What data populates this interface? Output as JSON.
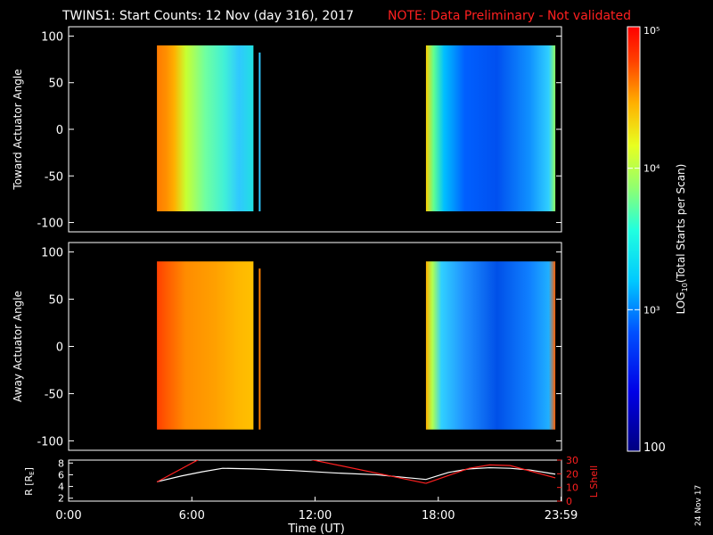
{
  "header": {
    "title": "TWINS1: Start Counts: 12 Nov (day 316), 2017",
    "note": "NOTE: Data Preliminary - Not validated"
  },
  "colorbar": {
    "label": "LOG10(Total Starts per Scan)",
    "label_base": "LOG",
    "label_sub": "10",
    "label_rest": "(Total Starts per Scan)",
    "ticks": [
      "10⁵",
      "10⁴",
      "10³",
      "100"
    ],
    "min": 100,
    "max": 100000,
    "scale": "log"
  },
  "date_stamp": "24 Nov 17",
  "chart_data": [
    {
      "type": "heatmap",
      "name": "toward",
      "ylabel": "Toward Actuator Angle",
      "ylim": [
        -110,
        110
      ],
      "yticks": [
        "100",
        "50",
        "0",
        "-50",
        "-100"
      ],
      "ytick_values": [
        100,
        50,
        0,
        -50,
        -100
      ],
      "xlim_hours": [
        0,
        24
      ],
      "data_windows_hours": [
        [
          4.3,
          9.0
        ],
        [
          17.4,
          23.7
        ]
      ],
      "y_extent": [
        -88,
        90
      ]
    },
    {
      "type": "heatmap",
      "name": "away",
      "ylabel": "Away Actuator Angle",
      "ylim": [
        -110,
        110
      ],
      "yticks": [
        "100",
        "50",
        "0",
        "-50",
        "-100"
      ],
      "ytick_values": [
        100,
        50,
        0,
        -50,
        -100
      ],
      "xlim_hours": [
        0,
        24
      ],
      "data_windows_hours": [
        [
          4.3,
          9.0
        ],
        [
          17.4,
          23.7
        ]
      ],
      "y_extent": [
        -88,
        90
      ]
    },
    {
      "type": "line",
      "name": "orbit",
      "xlabel": "Time (UT)",
      "xticks": [
        "0:00",
        "6:00",
        "12:00",
        "18:00",
        "23:59"
      ],
      "xtick_values": [
        0,
        6,
        12,
        18,
        23.98
      ],
      "ylabel_left": "R [RE]",
      "ylabel_left_base": "R [R",
      "ylabel_left_sub": "E",
      "ylabel_left_end": "]",
      "ylim_left": [
        1.5,
        8.5
      ],
      "yticks_left": [
        "8",
        "6",
        "4",
        "2"
      ],
      "ytick_values_left": [
        8,
        6,
        4,
        2
      ],
      "ylabel_right": "L Shell",
      "ylim_right": [
        0,
        30
      ],
      "yticks_right": [
        "30",
        "20",
        "10",
        "0"
      ],
      "ytick_values_right": [
        30,
        20,
        10,
        0
      ],
      "series": [
        {
          "axis": "left",
          "color": "#ffffff",
          "x": [
            4.3,
            5.5,
            6.5,
            7.5,
            9.0,
            11.0,
            13.0,
            15.0,
            17.4,
            18.5,
            19.5,
            20.5,
            21.5,
            22.5,
            23.7
          ],
          "y": [
            4.8,
            5.8,
            6.5,
            7.1,
            7.0,
            6.7,
            6.3,
            6.0,
            5.2,
            6.4,
            7.0,
            7.2,
            7.1,
            6.8,
            6.1
          ]
        },
        {
          "axis": "right",
          "color": "#ff2020",
          "segments": [
            {
              "x": [
                4.3,
                6.4
              ],
              "y": [
                14,
                31
              ]
            },
            {
              "x": [
                11.6,
                17.4
              ],
              "y": [
                31,
                13
              ]
            },
            {
              "x": [
                17.4,
                19.5,
                20.5,
                21.5,
                23.7
              ],
              "y": [
                13,
                24,
                26.5,
                26,
                17
              ]
            }
          ]
        }
      ]
    }
  ]
}
